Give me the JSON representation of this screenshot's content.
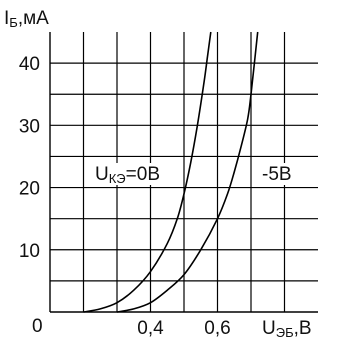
{
  "chart_data": {
    "type": "line",
    "title": "",
    "ylabel": {
      "main": "I",
      "sub": "Б",
      "unit": ",мА"
    },
    "xlabel": {
      "main": "U",
      "sub": "ЭБ",
      "unit": ",В"
    },
    "origin_label": "0",
    "x_tick_labels": [
      {
        "value": 0.4,
        "text": "0,4"
      },
      {
        "value": 0.6,
        "text": "0,6"
      }
    ],
    "y_tick_labels": [
      {
        "value": 10,
        "text": "10"
      },
      {
        "value": 20,
        "text": "20"
      },
      {
        "value": 30,
        "text": "30"
      },
      {
        "value": 40,
        "text": "40"
      }
    ],
    "xlim": [
      0.1,
      0.9
    ],
    "ylim": [
      0,
      45
    ],
    "x_gridlines": [
      0.2,
      0.3,
      0.4,
      0.5,
      0.6,
      0.7,
      0.8
    ],
    "y_gridlines": [
      5,
      10,
      15,
      20,
      25,
      30,
      35,
      40
    ],
    "grid": true,
    "series": [
      {
        "name": {
          "main": "U",
          "sub": "КЭ",
          "value": "=0В"
        },
        "x": [
          0.2,
          0.25,
          0.3,
          0.35,
          0.4,
          0.45,
          0.48,
          0.5,
          0.52,
          0.54,
          0.56,
          0.57,
          0.58
        ],
        "y": [
          0,
          0.5,
          1.5,
          3.5,
          6.5,
          11,
          15,
          19,
          24,
          30,
          37,
          41,
          45
        ]
      },
      {
        "name": {
          "main": "",
          "sub": "",
          "value": "-5В"
        },
        "x": [
          0.3,
          0.35,
          0.4,
          0.45,
          0.5,
          0.55,
          0.6,
          0.63,
          0.65,
          0.67,
          0.69,
          0.7,
          0.72
        ],
        "y": [
          0,
          0.5,
          1.5,
          3.5,
          6,
          10,
          15,
          19,
          22.5,
          26.5,
          31,
          35,
          45
        ]
      }
    ]
  }
}
